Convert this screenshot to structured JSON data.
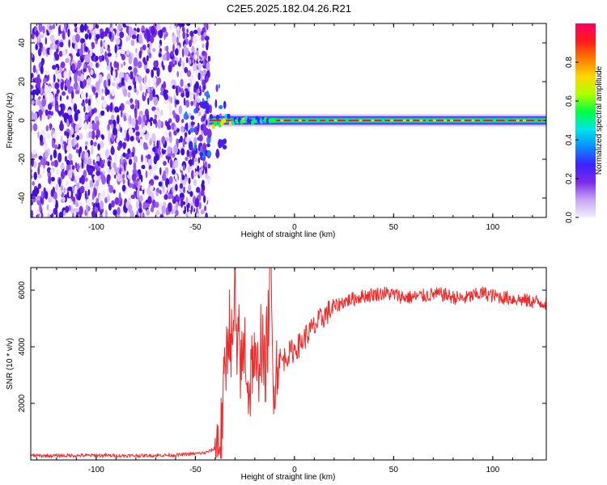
{
  "figure": {
    "title": "C2E5.2025.182.04.26.R21"
  },
  "chart_data": [
    {
      "type": "heatmap",
      "xlabel": "Height of straight line (km)",
      "ylabel": "Frequency (Hz)",
      "xlim": [
        -133,
        127
      ],
      "ylim": [
        -50,
        50
      ],
      "xticks": [
        -100,
        -50,
        0,
        50,
        100
      ],
      "yticks": [
        -40,
        -20,
        0,
        20,
        40
      ],
      "colorbar": {
        "label": "Normalized spectral amplitude",
        "range": [
          0,
          1
        ],
        "ticks": [
          0.0,
          0.2,
          0.4,
          0.6,
          0.8
        ],
        "tick_labels": [
          "0.0",
          "0.2",
          "0.4",
          "0.6",
          "0.8"
        ],
        "colormap": [
          "#f4eefe",
          "#c7a6f7",
          "#7b2be8",
          "#3b22ff",
          "#0a8cff",
          "#00e5e5",
          "#00ff40",
          "#b0ff00",
          "#ffd700",
          "#ff7a00",
          "#ff1a1a",
          "#ff0066"
        ]
      },
      "features": {
        "noise_region_x": [
          -133,
          -43
        ],
        "signal_line_start_x": -43,
        "signal_frequency_hz": 0
      }
    },
    {
      "type": "line",
      "xlabel": "Height of straight line (km)",
      "ylabel": "SNR (10 * v/v)",
      "xlim": [
        -133,
        127
      ],
      "ylim": [
        0,
        6800
      ],
      "xticks": [
        -100,
        -50,
        0,
        50,
        100
      ],
      "yticks": [
        2000,
        4000,
        6000
      ],
      "color": "#ee2a2a",
      "series": [
        {
          "x": [
            -133,
            -120,
            -100,
            -80,
            -60,
            -45,
            -40,
            -37,
            -35,
            -33,
            -31,
            -30,
            -29,
            -28,
            -27,
            -25,
            -23,
            -21,
            -19,
            -17,
            -15,
            -13,
            -12,
            -11,
            -10,
            -8,
            -6,
            -4,
            -2,
            0,
            3,
            6,
            10,
            15,
            20,
            25,
            30,
            35,
            40,
            45,
            50,
            55,
            60,
            65,
            70,
            75,
            80,
            85,
            90,
            95,
            100,
            105,
            110,
            115,
            120,
            127
          ],
          "y": [
            150,
            150,
            160,
            150,
            170,
            250,
            400,
            900,
            3000,
            5000,
            3500,
            6700,
            2500,
            4800,
            3000,
            4200,
            2200,
            3800,
            2600,
            4400,
            3000,
            5000,
            6700,
            3200,
            3000,
            3600,
            3500,
            3700,
            3800,
            3900,
            4100,
            4400,
            4700,
            5100,
            5400,
            5600,
            5700,
            5800,
            5850,
            5900,
            5850,
            5750,
            5750,
            5800,
            5850,
            5850,
            5750,
            5700,
            5800,
            5900,
            5800,
            5750,
            5700,
            5650,
            5600,
            5550
          ]
        }
      ]
    }
  ]
}
